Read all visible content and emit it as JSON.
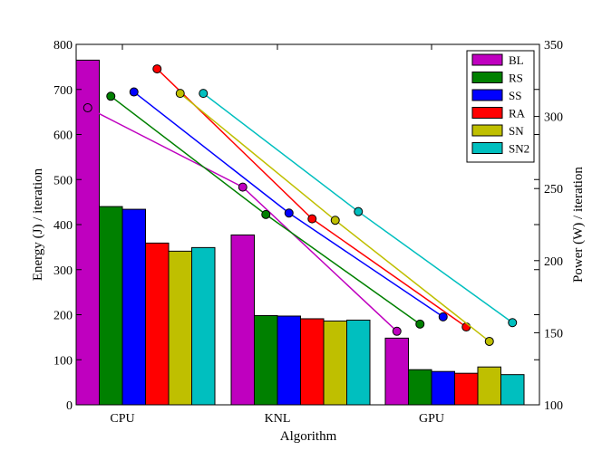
{
  "chart_data": {
    "type": "bar",
    "title": "",
    "xlabel": "Algorithm",
    "ylabel": "Energy (J) / iteration",
    "y2label": "Power (W) / iteration",
    "categories": [
      "CPU",
      "KNL",
      "GPU"
    ],
    "ylim": [
      0,
      800
    ],
    "y2lim": [
      100,
      350
    ],
    "yticks": [
      0,
      100,
      200,
      300,
      400,
      500,
      600,
      700,
      800
    ],
    "y2ticks": [
      100,
      150,
      200,
      250,
      300,
      350
    ],
    "legend_position": "top-right",
    "series": [
      {
        "name": "BL",
        "color": "#bf00bf",
        "energy": [
          765,
          377,
          148
        ],
        "power": [
          306,
          251,
          151
        ]
      },
      {
        "name": "RS",
        "color": "#008000",
        "energy": [
          440,
          198,
          78
        ],
        "power": [
          314,
          232,
          156
        ]
      },
      {
        "name": "SS",
        "color": "#0000ff",
        "energy": [
          434,
          197,
          74
        ],
        "power": [
          317,
          233,
          161
        ]
      },
      {
        "name": "RA",
        "color": "#ff0000",
        "energy": [
          359,
          191,
          70
        ],
        "power": [
          333,
          229,
          154
        ]
      },
      {
        "name": "SN",
        "color": "#bfbf00",
        "energy": [
          341,
          186,
          84
        ],
        "power": [
          316,
          228,
          144
        ]
      },
      {
        "name": "SN2",
        "color": "#00bfbf",
        "energy": [
          349,
          188,
          67
        ],
        "power": [
          316,
          234,
          157
        ]
      }
    ]
  }
}
